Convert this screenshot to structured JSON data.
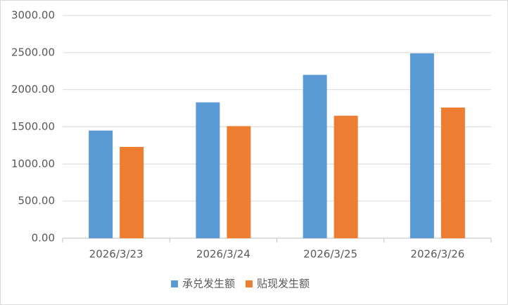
{
  "chart_data": {
    "type": "bar",
    "categories": [
      "2026/3/23",
      "2026/3/24",
      "2026/3/25",
      "2026/3/26"
    ],
    "series": [
      {
        "name": "承兑发生额",
        "color": "#5b9bd5",
        "values": [
          1450,
          1830,
          2200,
          2490
        ]
      },
      {
        "name": "贴现发生额",
        "color": "#ed7d31",
        "values": [
          1230,
          1510,
          1650,
          1760
        ]
      }
    ],
    "ylim": [
      0,
      3000
    ],
    "yticks": [
      {
        "value": 0,
        "label": "0.00"
      },
      {
        "value": 500,
        "label": "500.00"
      },
      {
        "value": 1000,
        "label": "1000.00"
      },
      {
        "value": 1500,
        "label": "1500.00"
      },
      {
        "value": 2000,
        "label": "2000.00"
      },
      {
        "value": 2500,
        "label": "2500.00"
      },
      {
        "value": 3000,
        "label": "3000.00"
      }
    ],
    "grid": true,
    "legend": "bottom"
  }
}
